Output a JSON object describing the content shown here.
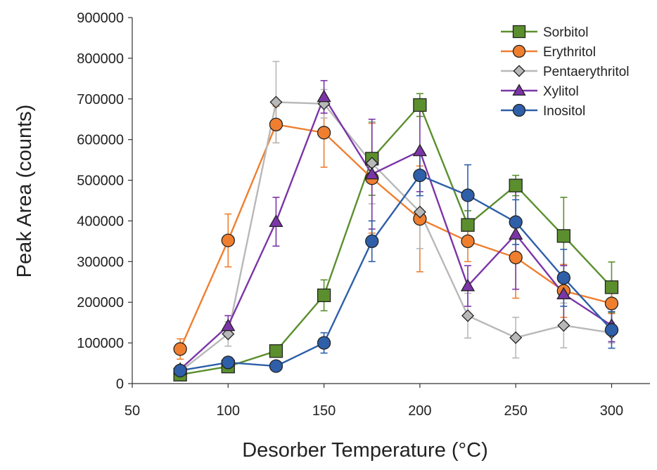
{
  "chart_data": {
    "type": "line",
    "title": "",
    "xlabel": "Desorber Temperature (°C)",
    "ylabel": "Peak Area (counts)",
    "xlim": [
      50,
      320
    ],
    "ylim": [
      0,
      900000
    ],
    "xticks": [
      50,
      100,
      150,
      200,
      250,
      300
    ],
    "yticks": [
      0,
      100000,
      200000,
      300000,
      400000,
      500000,
      600000,
      700000,
      800000,
      900000
    ],
    "x": [
      75,
      100,
      125,
      150,
      175,
      200,
      225,
      250,
      275,
      300
    ],
    "grid": false,
    "legend_position": "top-right",
    "series": [
      {
        "name": "Sorbitol",
        "color": "#5b8f2e",
        "marker": "square",
        "values": [
          22000,
          42000,
          80000,
          217000,
          553000,
          685000,
          390000,
          487000,
          363000,
          237000
        ],
        "errors": [
          6000,
          8000,
          12000,
          38000,
          90000,
          28000,
          35000,
          25000,
          95000,
          62000
        ]
      },
      {
        "name": "Erythritol",
        "color": "#ef7f2f",
        "marker": "circle",
        "values": [
          85000,
          352000,
          637000,
          617000,
          505000,
          405000,
          350000,
          310000,
          228000,
          197000
        ],
        "errors": [
          25000,
          65000,
          45000,
          85000,
          135000,
          130000,
          50000,
          100000,
          65000,
          25000
        ]
      },
      {
        "name": "Pentaerythritol",
        "color": "#b8b8b8",
        "marker": "diamond",
        "values": [
          30000,
          122000,
          692000,
          688000,
          542000,
          422000,
          167000,
          113000,
          143000,
          125000
        ],
        "errors": [
          8000,
          30000,
          100000,
          35000,
          100000,
          90000,
          55000,
          50000,
          55000,
          25000
        ]
      },
      {
        "name": "Xylitol",
        "color": "#7b35a8",
        "marker": "triangle",
        "values": [
          35000,
          142000,
          398000,
          705000,
          515000,
          572000,
          240000,
          367000,
          220000,
          143000
        ],
        "errors": [
          8000,
          25000,
          60000,
          40000,
          135000,
          100000,
          50000,
          135000,
          70000,
          40000
        ]
      },
      {
        "name": "Inositol",
        "color": "#2e5fa8",
        "marker": "circle",
        "values": [
          32000,
          52000,
          43000,
          100000,
          350000,
          512000,
          463000,
          397000,
          260000,
          132000
        ],
        "errors": [
          6000,
          8000,
          8000,
          25000,
          50000,
          50000,
          75000,
          55000,
          70000,
          45000
        ]
      }
    ]
  }
}
